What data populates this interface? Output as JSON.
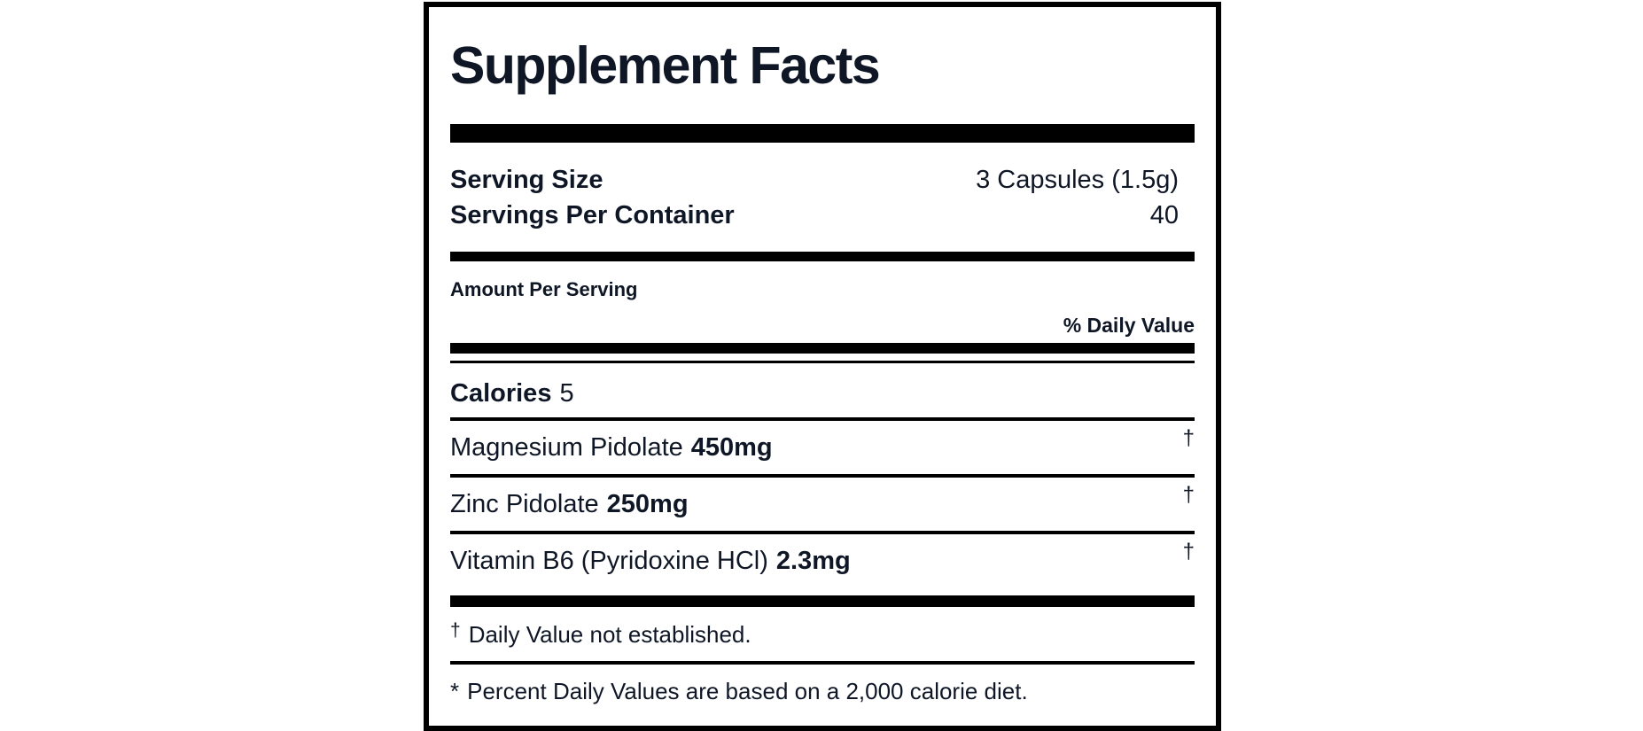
{
  "label": {
    "title": "Supplement Facts",
    "serving": [
      {
        "name": "Serving Size",
        "value": "3 Capsules (1.5g)"
      },
      {
        "name": "Servings Per Container",
        "value": "40"
      }
    ],
    "amount_per_serving_header": "Amount Per Serving",
    "daily_value_header": "% Daily Value",
    "calories": {
      "name": "Calories",
      "value": "5"
    },
    "nutrients": [
      {
        "name": "Magnesium Pidolate",
        "amount": "450mg",
        "daily_value": "†"
      },
      {
        "name": "Zinc Pidolate",
        "amount": "250mg",
        "daily_value": "†"
      },
      {
        "name": "Vitamin B6 (Pyridoxine HCl)",
        "amount": "2.3mg",
        "daily_value": "†"
      }
    ],
    "footnotes": [
      {
        "symbol": "†",
        "text": "Daily Value not established."
      },
      {
        "symbol": "*",
        "text": "Percent Daily Values are based on a 2,000 calorie diet."
      }
    ],
    "colors": {
      "text": "#0f1726",
      "rule": "#000000",
      "background": "#ffffff"
    }
  }
}
